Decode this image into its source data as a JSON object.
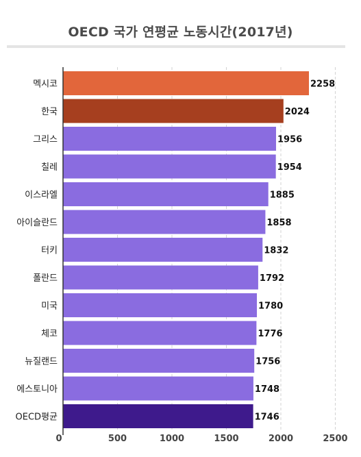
{
  "chart_data": {
    "type": "bar",
    "orientation": "horizontal",
    "title": "OECD 국가 연평균 노동시간(2017년)",
    "categories": [
      "멕시코",
      "한국",
      "그리스",
      "칠레",
      "이스라엘",
      "아이슬란드",
      "터키",
      "폴란드",
      "미국",
      "체코",
      "뉴질랜드",
      "에스토니아",
      "OECD평균"
    ],
    "values": [
      2258,
      2024,
      1956,
      1954,
      1885,
      1858,
      1832,
      1792,
      1780,
      1776,
      1756,
      1748,
      1746
    ],
    "value_labels": [
      "2258",
      "2024",
      "1956",
      "1954",
      "1885",
      "1858",
      "1832",
      "1792",
      "1780",
      "1776",
      "1756",
      "1748",
      "1746"
    ],
    "bar_colors": [
      "#e2663b",
      "#a63f1f",
      "#8a6ce0",
      "#8a6ce0",
      "#8a6ce0",
      "#8a6ce0",
      "#8a6ce0",
      "#8a6ce0",
      "#8a6ce0",
      "#8a6ce0",
      "#8a6ce0",
      "#8a6ce0",
      "#3e1a8c"
    ],
    "xlim": [
      0,
      2500
    ],
    "x_ticks": [
      0,
      500,
      1000,
      1500,
      2000,
      2500
    ],
    "x_tick_labels": [
      "0",
      "500",
      "1000",
      "1500",
      "2000",
      "2500"
    ],
    "xlabel": "",
    "ylabel": "",
    "grid": "vertical dashed",
    "legend": "none"
  }
}
